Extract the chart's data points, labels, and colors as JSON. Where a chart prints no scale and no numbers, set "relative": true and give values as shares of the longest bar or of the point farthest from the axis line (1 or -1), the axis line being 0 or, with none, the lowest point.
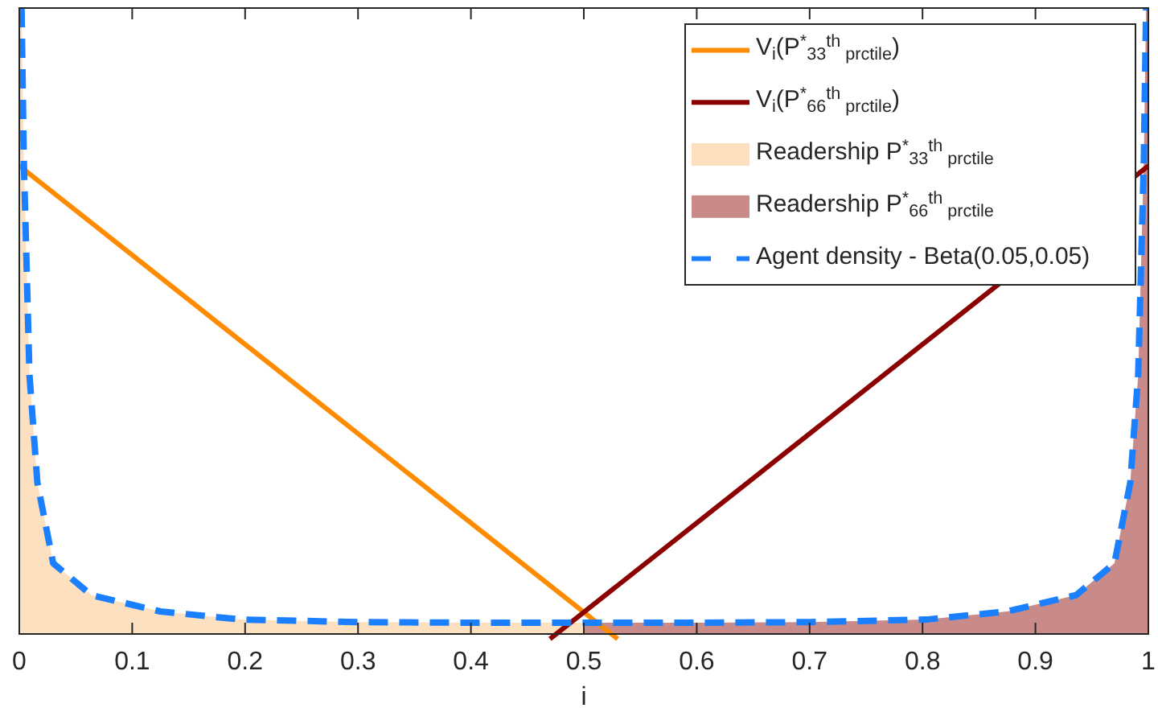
{
  "chart_data": {
    "type": "line",
    "relative": true,
    "xlabel": "i",
    "xlim": [
      0,
      1
    ],
    "xticks": [
      0,
      0.1,
      0.2,
      0.3,
      0.4,
      0.5,
      0.6,
      0.7,
      0.8,
      0.9,
      1
    ],
    "legend": "top right",
    "series": [
      {
        "name": "V$_{i}$(P$^{*}$$_{33}$$^{th}$$_{ prctile}$)",
        "color": "#ff8c00",
        "x": [
          0,
          0.53
        ],
        "values": [
          0.748,
          -0.008
        ]
      },
      {
        "name": "V$_{i}$(P$^{*}$$_{66}$$^{th}$$_{ prctile}$)",
        "color": "#8b0000",
        "x": [
          0.47,
          1
        ],
        "values": [
          -0.008,
          0.748
        ]
      },
      {
        "type": "area",
        "name": "Readership P$^{*}$$_{33}$$^{th}$$_{ prctile}$",
        "color": "#fde0c0",
        "x": [
          0,
          0.002,
          0.004,
          0.009,
          0.016,
          0.03,
          0.064,
          0.125,
          0.197,
          0.3,
          0.4,
          0.5
        ],
        "values": [
          1,
          1,
          0.757,
          0.414,
          0.242,
          0.113,
          0.062,
          0.036,
          0.023,
          0.019,
          0.018,
          0.018
        ]
      },
      {
        "type": "area",
        "name": "Readership P$^{*}$$_{66}$$^{th}$$_{ prctile}$",
        "color": "#c98a8a",
        "x": [
          0.5,
          0.6,
          0.7,
          0.803,
          0.875,
          0.936,
          0.97,
          0.984,
          0.991,
          0.996,
          0.998,
          1
        ],
        "values": [
          0.018,
          0.018,
          0.019,
          0.023,
          0.036,
          0.062,
          0.113,
          0.242,
          0.414,
          0.757,
          1,
          1
        ]
      },
      {
        "name": "Agent density - Beta(0.05,0.05)",
        "color": "#1a80ff",
        "line_style": "dashed",
        "x": [
          0.002,
          0.004,
          0.009,
          0.016,
          0.03,
          0.064,
          0.125,
          0.197,
          0.3,
          0.4,
          0.5,
          0.6,
          0.7,
          0.803,
          0.875,
          0.936,
          0.97,
          0.984,
          0.991,
          0.996,
          0.998
        ],
        "values": [
          1,
          0.757,
          0.414,
          0.242,
          0.113,
          0.062,
          0.036,
          0.023,
          0.019,
          0.018,
          0.018,
          0.018,
          0.019,
          0.023,
          0.036,
          0.062,
          0.113,
          0.242,
          0.414,
          0.757,
          1
        ]
      }
    ]
  }
}
